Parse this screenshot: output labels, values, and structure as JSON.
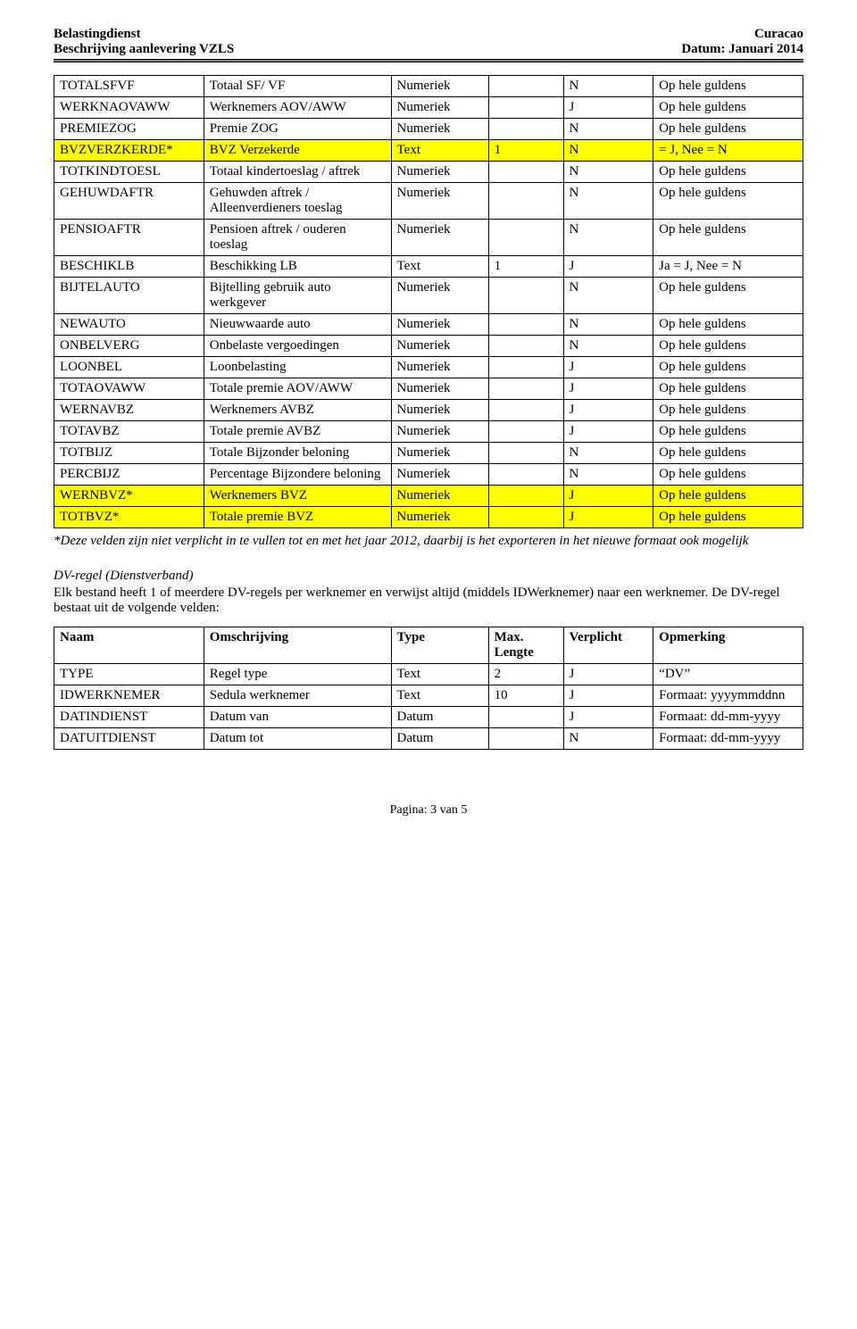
{
  "header": {
    "org": "Belastingdienst",
    "doc": "Beschrijving aanlevering VZLS",
    "place": "Curacao",
    "date": "Datum: Januari 2014"
  },
  "table1": {
    "rows": [
      {
        "hl": false,
        "name": "TOTALSFVF",
        "desc": "Totaal SF/ VF",
        "type": "Numeriek",
        "len": "",
        "req": "N",
        "note": "Op hele guldens"
      },
      {
        "hl": false,
        "name": "WERKNAOVAWW",
        "desc": "Werknemers AOV/AWW",
        "type": "Numeriek",
        "len": "",
        "req": "J",
        "note": "Op hele guldens"
      },
      {
        "hl": false,
        "name": "PREMIEZOG",
        "desc": "Premie ZOG",
        "type": "Numeriek",
        "len": "",
        "req": "N",
        "note": "Op hele guldens"
      },
      {
        "hl": true,
        "name": "BVZVERZKERDE*",
        "desc": "BVZ Verzekerde",
        "type": "Text",
        "len": "1",
        "req": "N",
        "note": "= J, Nee = N"
      },
      {
        "hl": false,
        "name": "TOTKINDTOESL",
        "desc": "Totaal kindertoeslag / aftrek",
        "type": "Numeriek",
        "len": "",
        "req": "N",
        "note": "Op hele guldens"
      },
      {
        "hl": false,
        "name": "GEHUWDAFTR",
        "desc": "Gehuwden aftrek / Alleenverdieners toeslag",
        "type": "Numeriek",
        "len": "",
        "req": "N",
        "note": "Op hele guldens"
      },
      {
        "hl": false,
        "name": "PENSIOAFTR",
        "desc": "Pensioen aftrek / ouderen toeslag",
        "type": "Numeriek",
        "len": "",
        "req": "N",
        "note": "Op hele guldens"
      },
      {
        "hl": false,
        "name": "BESCHIKLB",
        "desc": "Beschikking LB",
        "type": "Text",
        "len": "1",
        "req": "J",
        "note": "Ja = J, Nee = N"
      },
      {
        "hl": false,
        "name": "BIJTELAUTO",
        "desc": "Bijtelling gebruik auto werkgever",
        "type": "Numeriek",
        "len": "",
        "req": "N",
        "note": "Op hele guldens"
      },
      {
        "hl": false,
        "name": "NEWAUTO",
        "desc": "Nieuwwaarde auto",
        "type": "Numeriek",
        "len": "",
        "req": "N",
        "note": "Op hele guldens"
      },
      {
        "hl": false,
        "name": "ONBELVERG",
        "desc": "Onbelaste vergoedingen",
        "type": "Numeriek",
        "len": "",
        "req": "N",
        "note": "Op hele guldens"
      },
      {
        "hl": false,
        "name": "LOONBEL",
        "desc": "Loonbelasting",
        "type": "Numeriek",
        "len": "",
        "req": "J",
        "note": "Op hele guldens"
      },
      {
        "hl": false,
        "name": "TOTAOVAWW",
        "desc": "Totale premie AOV/AWW",
        "type": "Numeriek",
        "len": "",
        "req": "J",
        "note": "Op hele guldens"
      },
      {
        "hl": false,
        "name": "WERNAVBZ",
        "desc": "Werknemers AVBZ",
        "type": "Numeriek",
        "len": "",
        "req": "J",
        "note": "Op hele guldens"
      },
      {
        "hl": false,
        "name": "TOTAVBZ",
        "desc": "Totale premie AVBZ",
        "type": "Numeriek",
        "len": "",
        "req": "J",
        "note": "Op hele guldens"
      },
      {
        "hl": false,
        "name": "TOTBIJZ",
        "desc": "Totale Bijzonder beloning",
        "type": "Numeriek",
        "len": "",
        "req": "N",
        "note": "Op hele guldens"
      },
      {
        "hl": false,
        "name": "PERCBIJZ",
        "desc": "Percentage Bijzondere beloning",
        "type": "Numeriek",
        "len": "",
        "req": "N",
        "note": "Op hele guldens"
      },
      {
        "hl": true,
        "name": "WERNBVZ*",
        "desc": "Werknemers BVZ",
        "type": "Numeriek",
        "len": "",
        "req": "J",
        "note": "Op hele guldens"
      },
      {
        "hl": true,
        "name": "TOTBVZ*",
        "desc": "Totale premie BVZ",
        "type": "Numeriek",
        "len": "",
        "req": "J",
        "note": "Op hele guldens"
      }
    ]
  },
  "footnote": "*Deze velden zijn niet verplicht in te vullen tot en met het jaar 2012, daarbij is het exporteren in het nieuwe formaat ook mogelijk",
  "dv": {
    "title": "DV-regel (Dienstverband)",
    "text": "Elk bestand heeft 1 of meerdere DV-regels per werknemer en verwijst altijd (middels IDWerknemer) naar een werknemer. De DV-regel bestaat uit de volgende velden:"
  },
  "table2": {
    "headers": {
      "name": "Naam",
      "desc": "Omschrijving",
      "type": "Type",
      "len": "Max. Lengte",
      "req": "Verplicht",
      "note": "Opmerking"
    },
    "rows": [
      {
        "name": "TYPE",
        "desc": "Regel type",
        "type": "Text",
        "len": "2",
        "req": "J",
        "note": "“DV”"
      },
      {
        "name": "IDWERKNEMER",
        "desc": "Sedula werknemer",
        "type": "Text",
        "len": "10",
        "req": "J",
        "note": "Formaat: yyyymmddnn"
      },
      {
        "name": "DATINDIENST",
        "desc": "Datum van",
        "type": "Datum",
        "len": "",
        "req": "J",
        "note": "Formaat: dd-mm-yyyy"
      },
      {
        "name": "DATUITDIENST",
        "desc": "Datum tot",
        "type": "Datum",
        "len": "",
        "req": "N",
        "note": "Formaat: dd-mm-yyyy"
      }
    ]
  },
  "footer": {
    "page": "Pagina: 3 van 5"
  },
  "colors": {
    "highlight": "#ffff00",
    "text": "#000000",
    "bg": "#ffffff"
  }
}
